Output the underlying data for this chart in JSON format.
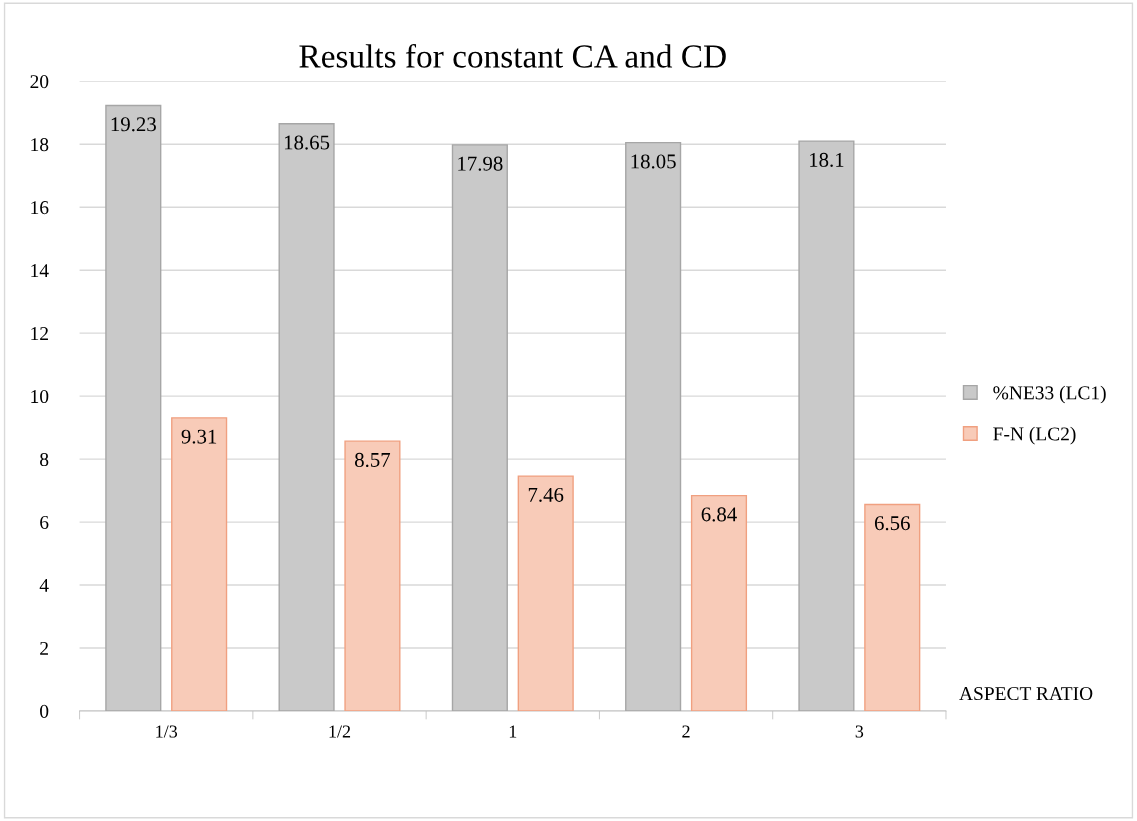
{
  "chart_data": {
    "type": "bar",
    "title": "Results for constant CA and CD",
    "xlabel": "ASPECT RATIO",
    "categories": [
      "1/3",
      "1/2",
      "1",
      "2",
      "3"
    ],
    "series": [
      {
        "name": "%NE33 (LC1)",
        "color": "#c9c9c9",
        "values": [
          19.23,
          18.65,
          17.98,
          18.05,
          18.1
        ]
      },
      {
        "name": "F-N (LC2)",
        "color": "#f8cbb8",
        "values": [
          9.31,
          8.57,
          7.46,
          6.84,
          6.56
        ]
      }
    ],
    "ylim": [
      0,
      20
    ],
    "yticks": [
      0,
      2,
      4,
      6,
      8,
      10,
      12,
      14,
      16,
      18,
      20
    ],
    "grid": "y",
    "legend": "right",
    "data_labels": true
  }
}
